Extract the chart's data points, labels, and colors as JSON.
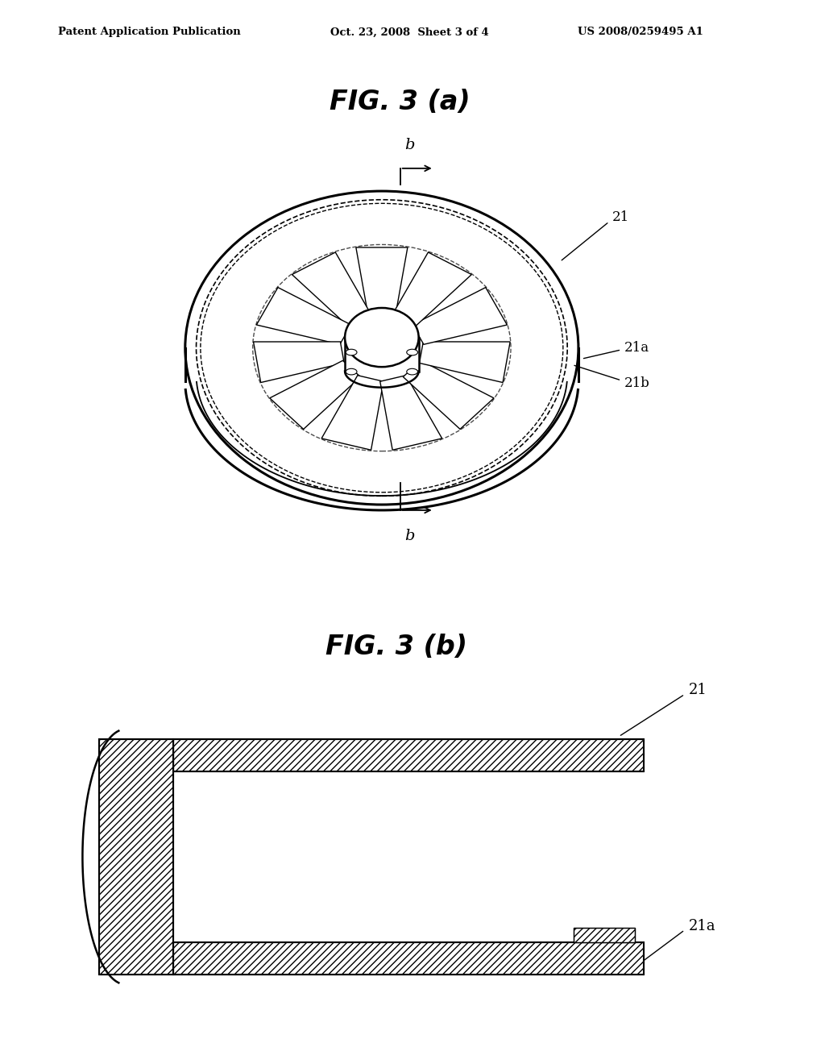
{
  "background_color": "#ffffff",
  "header_left": "Patent Application Publication",
  "header_center": "Oct. 23, 2008  Sheet 3 of 4",
  "header_right": "US 2008/0259495 A1",
  "fig3a_title": "FIG. 3 (a)",
  "fig3b_title": "FIG. 3 (b)",
  "label_21": "21",
  "label_21a": "21a",
  "label_21b": "21b",
  "label_b": "b"
}
